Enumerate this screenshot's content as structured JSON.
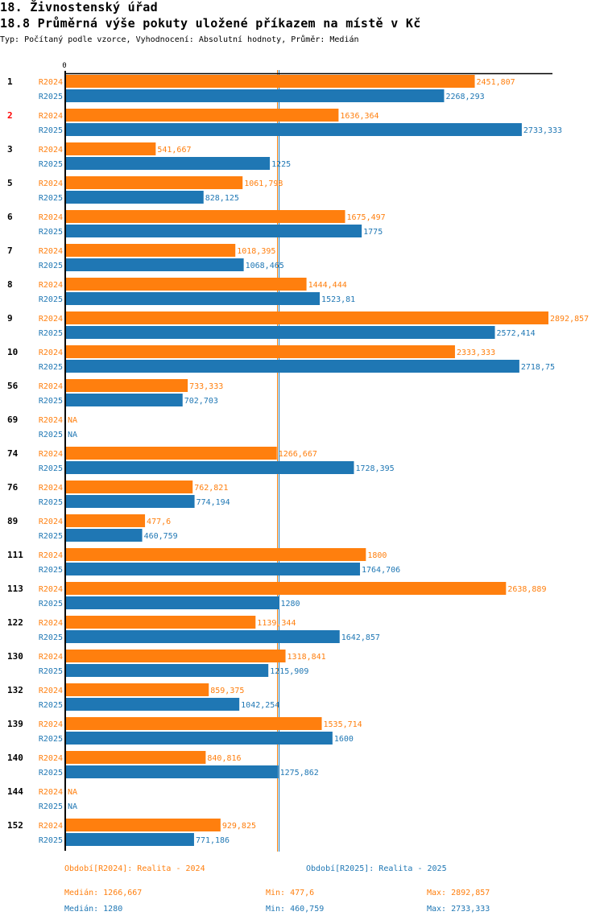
{
  "header": {
    "section_title": "18. Živnostenský úřad",
    "chart_title": "18.8 Průměrná výše pokuty uložené příkazem na místě v Kč",
    "subtitle": "Typ: Počítaný podle vzorce, Vyhodnocení: Absolutní hodnoty, Průměr: Medián"
  },
  "colors": {
    "R2024": "#ff7f0e",
    "R2025": "#1f77b4",
    "highlight_label": "#ff0000",
    "axis": "#000000"
  },
  "chart_data": {
    "type": "bar",
    "orientation": "horizontal",
    "title": "18.8 Průměrná výše pokuty uložené příkazem na místě v Kč",
    "xlabel": "",
    "ylabel": "",
    "xlim": [
      0,
      2892.857
    ],
    "x_tick_labels": [
      "0"
    ],
    "grid": false,
    "categories": [
      "1",
      "2",
      "3",
      "5",
      "6",
      "7",
      "8",
      "9",
      "10",
      "56",
      "69",
      "74",
      "76",
      "89",
      "111",
      "113",
      "122",
      "130",
      "132",
      "139",
      "140",
      "144",
      "152"
    ],
    "highlighted_categories": [
      "2"
    ],
    "series": [
      {
        "name": "R2024",
        "legend": "Období[R2024]: Realita - 2024",
        "values": [
          2451.807,
          1636.364,
          541.667,
          1061.798,
          1675.497,
          1018.395,
          1444.444,
          2892.857,
          2333.333,
          733.333,
          null,
          1266.667,
          762.821,
          477.6,
          1800,
          2638.889,
          1139.344,
          1318.841,
          859.375,
          1535.714,
          840.816,
          null,
          929.825
        ],
        "labels": [
          "2451,807",
          "1636,364",
          "541,667",
          "1061,798",
          "1675,497",
          "1018,395",
          "1444,444",
          "2892,857",
          "2333,333",
          "733,333",
          "NA",
          "1266,667",
          "762,821",
          "477,6",
          "1800",
          "2638,889",
          "1139,344",
          "1318,841",
          "859,375",
          "1535,714",
          "840,816",
          "NA",
          "929,825"
        ],
        "median": 1266.667,
        "stats": {
          "median": "Medián: 1266,667",
          "min": "Min: 477,6",
          "max": "Max: 2892,857"
        }
      },
      {
        "name": "R2025",
        "legend": "Období[R2025]: Realita - 2025",
        "values": [
          2268.293,
          2733.333,
          1225,
          828.125,
          1775,
          1068.465,
          1523.81,
          2572.414,
          2718.75,
          702.703,
          null,
          1728.395,
          774.194,
          460.759,
          1764.706,
          1280,
          1642.857,
          1215.909,
          1042.254,
          1600,
          1275.862,
          null,
          771.186
        ],
        "labels": [
          "2268,293",
          "2733,333",
          "1225",
          "828,125",
          "1775",
          "1068,465",
          "1523,81",
          "2572,414",
          "2718,75",
          "702,703",
          "NA",
          "1728,395",
          "774,194",
          "460,759",
          "1764,706",
          "1280",
          "1642,857",
          "1215,909",
          "1042,254",
          "1600",
          "1275,862",
          "NA",
          "771,186"
        ],
        "median": 1280,
        "stats": {
          "median": "Medián: 1280",
          "min": "Min: 460,759",
          "max": "Max: 2733,333"
        }
      }
    ],
    "legend_position": "bottom"
  }
}
